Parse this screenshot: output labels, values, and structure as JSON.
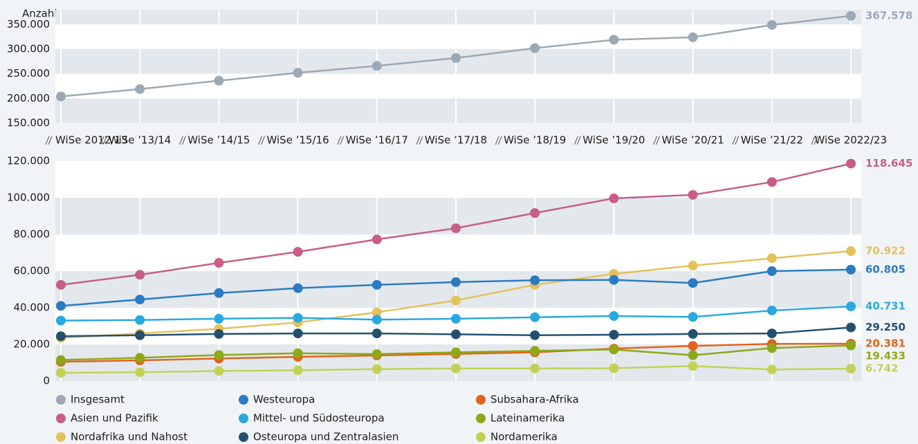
{
  "chart_data": [
    {
      "type": "line",
      "y_label": "Anzahl",
      "categories": [
        "WiSe 2012/13",
        "WiSe ’13/14",
        "WiSe ’14/15",
        "WiSe ’15/16",
        "WiSe ’16/17",
        "WiSe ’17/18",
        "WiSe ’18/19",
        "WiSe ’19/20",
        "WiSe ’20/21",
        "WiSe ’21/22",
        "WiSe 2022/23"
      ],
      "ylim": [
        150000,
        380000
      ],
      "yticks": [
        {
          "value": 150000,
          "label": "150.000"
        },
        {
          "value": 200000,
          "label": "200.000"
        },
        {
          "value": 250000,
          "label": "250.000"
        },
        {
          "value": 300000,
          "label": "300.000"
        },
        {
          "value": 350000,
          "label": "350.000"
        }
      ],
      "grid": true,
      "series": [
        {
          "name": "Insgesamt",
          "color": "#9aa9b5",
          "values": [
            204000,
            219000,
            236000,
            252000,
            266000,
            282000,
            302000,
            319000,
            324000,
            349000,
            367578
          ],
          "value_labels": [
            null,
            null,
            null,
            null,
            null,
            null,
            null,
            null,
            null,
            null,
            "367.578"
          ]
        }
      ]
    },
    {
      "type": "line",
      "ylim": [
        0,
        120000
      ],
      "yticks": [
        0,
        {
          "value": 20000,
          "label": "20.000"
        },
        {
          "value": 40000,
          "label": "40.000"
        },
        {
          "value": 60000,
          "label": "60.000"
        },
        {
          "value": 80000,
          "label": "80.000"
        },
        {
          "value": 100000,
          "label": "100.000"
        },
        {
          "value": 120000,
          "label": "120.000"
        }
      ],
      "grid": true,
      "series": [
        {
          "name": "Asien und Pazifik",
          "color": "#c85d87",
          "values": [
            52500,
            58000,
            64500,
            70500,
            77300,
            83400,
            91700,
            99700,
            101600,
            108600,
            118645
          ],
          "value_labels": [
            null,
            null,
            null,
            null,
            null,
            null,
            null,
            null,
            null,
            null,
            "118.645"
          ]
        },
        {
          "name": "Nordafrika und Nahost",
          "color": "#e5c15a",
          "values": [
            23500,
            26000,
            28500,
            32000,
            37500,
            44000,
            52500,
            58500,
            63000,
            67000,
            70922
          ],
          "value_labels": [
            null,
            null,
            null,
            null,
            null,
            null,
            null,
            null,
            null,
            null,
            "70.922"
          ]
        },
        {
          "name": "Westeuropa",
          "color": "#2b7bc2",
          "values": [
            41000,
            44500,
            48000,
            50700,
            52500,
            54000,
            55000,
            55200,
            53500,
            60000,
            60805
          ],
          "value_labels": [
            null,
            null,
            null,
            null,
            null,
            null,
            null,
            null,
            null,
            null,
            "60.805"
          ]
        },
        {
          "name": "Mittel- und Südosteuropa",
          "color": "#2aa8e0",
          "values": [
            33000,
            33300,
            34000,
            34500,
            33500,
            34000,
            34800,
            35500,
            35000,
            38500,
            40731
          ],
          "value_labels": [
            null,
            null,
            null,
            null,
            null,
            null,
            null,
            null,
            null,
            null,
            "40.731"
          ]
        },
        {
          "name": "Osteuropa und Zentralasien",
          "color": "#24506f",
          "values": [
            24500,
            25000,
            25700,
            26000,
            26000,
            25500,
            25000,
            25300,
            25700,
            26000,
            29250
          ],
          "value_labels": [
            null,
            null,
            null,
            null,
            null,
            null,
            null,
            null,
            null,
            null,
            "29.250"
          ]
        },
        {
          "name": "Subsahara-Afrika",
          "color": "#e0641c",
          "values": [
            10500,
            11300,
            12300,
            13200,
            14000,
            14800,
            15700,
            17700,
            19200,
            20300,
            20381
          ],
          "value_labels": [
            null,
            null,
            null,
            null,
            null,
            null,
            null,
            null,
            null,
            null,
            "20.381"
          ]
        },
        {
          "name": "Lateinamerika",
          "color": "#8ea81a",
          "values": [
            11500,
            12700,
            14200,
            15200,
            14700,
            15700,
            16500,
            17200,
            14100,
            18000,
            19433
          ],
          "value_labels": [
            null,
            null,
            null,
            null,
            null,
            null,
            null,
            null,
            null,
            null,
            "19.433"
          ]
        },
        {
          "name": "Nordamerika",
          "color": "#c2d156",
          "values": [
            4500,
            4800,
            5500,
            5900,
            6500,
            6900,
            6900,
            7000,
            8200,
            6300,
            6742
          ],
          "value_labels": [
            null,
            null,
            null,
            null,
            null,
            null,
            null,
            null,
            null,
            null,
            "6.742"
          ]
        }
      ]
    }
  ]
}
